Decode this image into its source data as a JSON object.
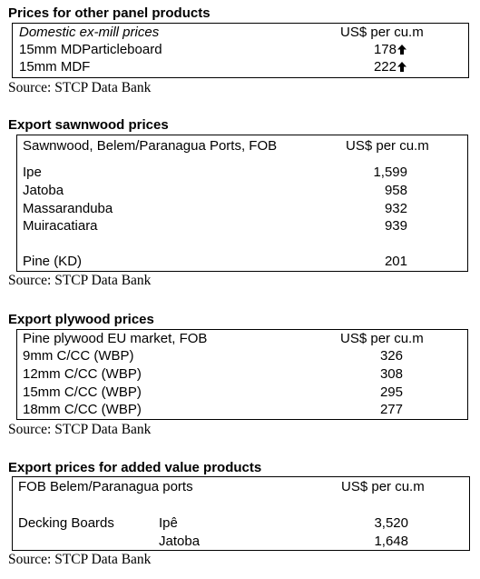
{
  "panel": {
    "heading": "Prices for other panel products",
    "col_label": "Domestic ex-mill prices",
    "col_unit": "US$ per cu.m",
    "rows": [
      {
        "label": "15mm MDParticleboard",
        "value": "178"
      },
      {
        "label": "15mm MDF",
        "value": "222"
      }
    ],
    "source": "Source: STCP Data Bank"
  },
  "sawnwood": {
    "heading": "Export sawnwood prices",
    "col_label": "Sawnwood, Belem/Paranagua Ports, FOB",
    "col_unit": "US$ per cu.m",
    "rows": [
      {
        "label": "Ipe",
        "value": "1,599"
      },
      {
        "label": "Jatoba",
        "value": "958"
      },
      {
        "label": "Massaranduba",
        "value": "932"
      },
      {
        "label": "Muiracatiara",
        "value": "939"
      },
      {
        "label": "Pine (KD)",
        "value": "201"
      }
    ],
    "source": "Source: STCP Data Bank"
  },
  "plywood": {
    "heading": "Export plywood prices",
    "col_label": "Pine plywood EU market, FOB",
    "col_unit": "US$ per cu.m",
    "rows": [
      {
        "label": "9mm C/CC (WBP)",
        "value": "326"
      },
      {
        "label": "12mm C/CC (WBP)",
        "value": "308"
      },
      {
        "label": "15mm C/CC (WBP)",
        "value": "295"
      },
      {
        "label": "18mm C/CC (WBP)",
        "value": "277"
      }
    ],
    "source": "Source: STCP Data Bank"
  },
  "added_value": {
    "heading": "Export prices for added value products",
    "col_label": "FOB Belem/Paranagua ports",
    "col_unit": "US$ per cu.m",
    "product": "Decking Boards",
    "rows": [
      {
        "species": "Ipê",
        "value": "3,520"
      },
      {
        "species": "Jatoba",
        "value": "1,648"
      }
    ],
    "source": "Source: STCP Data Bank"
  },
  "icons": {
    "trend": "arrow-up-icon"
  }
}
